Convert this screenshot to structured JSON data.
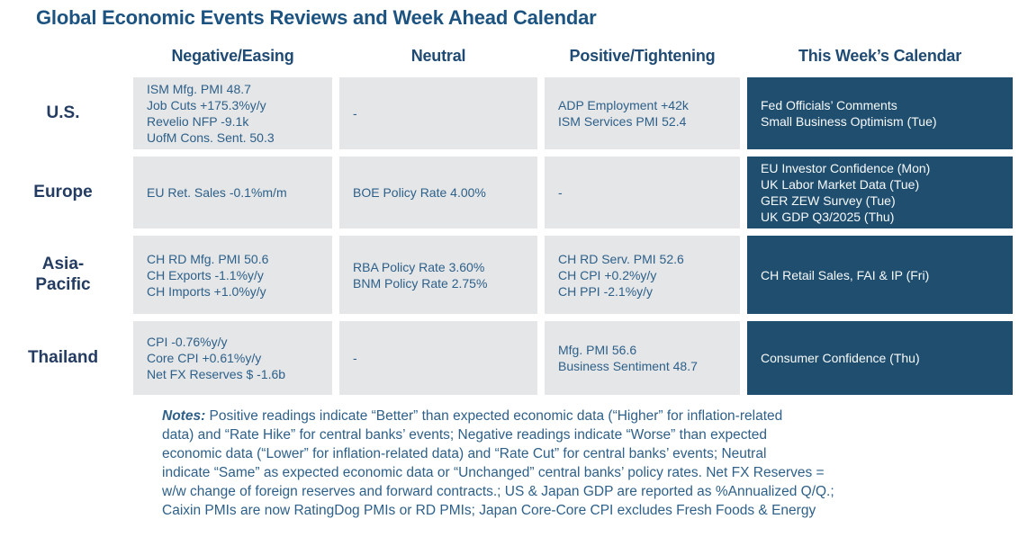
{
  "title": "Global Economic Events Reviews and Week Ahead Calendar",
  "columns": [
    "Negative/Easing",
    "Neutral",
    "Positive/Tightening",
    "This Week’s Calendar"
  ],
  "rows": [
    {
      "region": "U.S.",
      "negative": [
        "ISM Mfg. PMI 48.7",
        "Job Cuts +175.3%y/y",
        "Revelio NFP -9.1k",
        "UofM Cons. Sent. 50.3"
      ],
      "neutral": [
        "-"
      ],
      "positive": [
        "ADP Employment +42k",
        "ISM Services PMI 52.4"
      ],
      "calendar": [
        "Fed Officials’ Comments",
        "Small Business Optimism (Tue)"
      ]
    },
    {
      "region": "Europe",
      "negative": [
        "EU Ret. Sales -0.1%m/m"
      ],
      "neutral": [
        "BOE Policy Rate 4.00%"
      ],
      "positive": [
        "-"
      ],
      "calendar": [
        "EU Investor Confidence (Mon)",
        "UK Labor Market Data (Tue)",
        "GER ZEW Survey (Tue)",
        "UK GDP Q3/2025 (Thu)"
      ]
    },
    {
      "region": "Asia-\nPacific",
      "negative": [
        "CH RD Mfg. PMI 50.6",
        "CH Exports -1.1%y/y",
        "CH Imports +1.0%y/y"
      ],
      "neutral": [
        "RBA Policy Rate 3.60%",
        "BNM Policy Rate 2.75%"
      ],
      "positive": [
        "CH RD Serv. PMI 52.6",
        "CH CPI +0.2%y/y",
        "CH PPI -2.1%y/y"
      ],
      "calendar": [
        "CH Retail Sales, FAI & IP (Fri)"
      ]
    },
    {
      "region": "Thailand",
      "negative": [
        "CPI -0.76%y/y",
        "Core CPI +0.61%y/y",
        "Net FX Reserves $ -1.6b"
      ],
      "neutral": [
        "-"
      ],
      "positive": [
        "Mfg. PMI 56.6",
        "Business Sentiment 48.7"
      ],
      "calendar": [
        "Consumer Confidence (Thu)"
      ]
    }
  ],
  "notes": {
    "label": "Notes:",
    "lines": [
      "Positive readings indicate “Better” than expected economic data (“Higher” for inflation-related",
      "data) and “Rate Hike” for central banks’ events; Negative readings indicate “Worse” than expected",
      "economic data (“Lower” for inflation-related data) and “Rate Cut” for central banks’ events; Neutral",
      "indicate “Same” as expected economic data or “Unchanged” central banks’ policy rates. Net FX Reserves =",
      "w/w change of foreign reserves and forward contracts.; US & Japan GDP are reported as %Annualized Q/Q.;",
      "Caixin PMIs are now RatingDog PMIs or RD PMIs; Japan Core-Core CPI excludes Fresh Foods & Energy"
    ]
  },
  "colors": {
    "title_color": "#1C5380",
    "header_color": "#1F4A73",
    "region_color": "#243C61",
    "cell_bg": "#E4E6E8",
    "cell_text": "#2E6089",
    "calendar_bg": "#1F4E6E",
    "calendar_text": "#F7FAFC",
    "notes_color": "#2E6089"
  }
}
